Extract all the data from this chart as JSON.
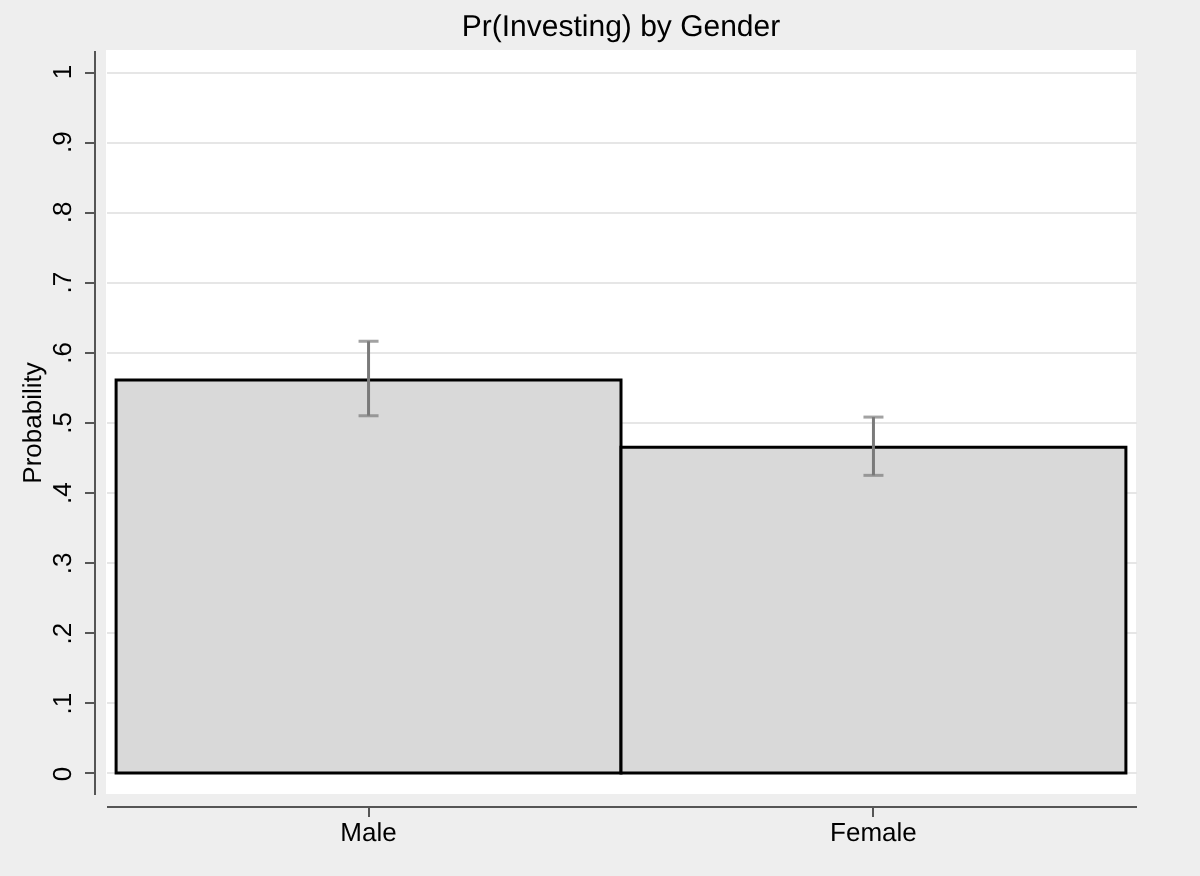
{
  "chart_data": {
    "type": "bar",
    "title": "Pr(Investing) by Gender",
    "ylabel": "Probability",
    "categories": [
      "Male",
      "Female"
    ],
    "values": [
      0.56,
      0.464
    ],
    "errors": [
      [
        0.509,
        0.615
      ],
      [
        0.424,
        0.507
      ]
    ],
    "color": "#d9d9d9",
    "ylim": [
      -0.03,
      1.03
    ],
    "yticks": [
      0,
      {
        "value": 0.1,
        "label": ".1"
      },
      {
        "value": 0.2,
        "label": ".2"
      },
      {
        "value": 0.3,
        "label": ".3"
      },
      {
        "value": 0.4,
        "label": ".4"
      },
      {
        "value": 0.5,
        "label": ".5"
      },
      {
        "value": 0.6,
        "label": ".6"
      },
      {
        "value": 0.7,
        "label": ".7"
      },
      {
        "value": 0.8,
        "label": ".8"
      },
      {
        "value": 0.9,
        "label": ".9"
      },
      1
    ],
    "grid": "y"
  }
}
